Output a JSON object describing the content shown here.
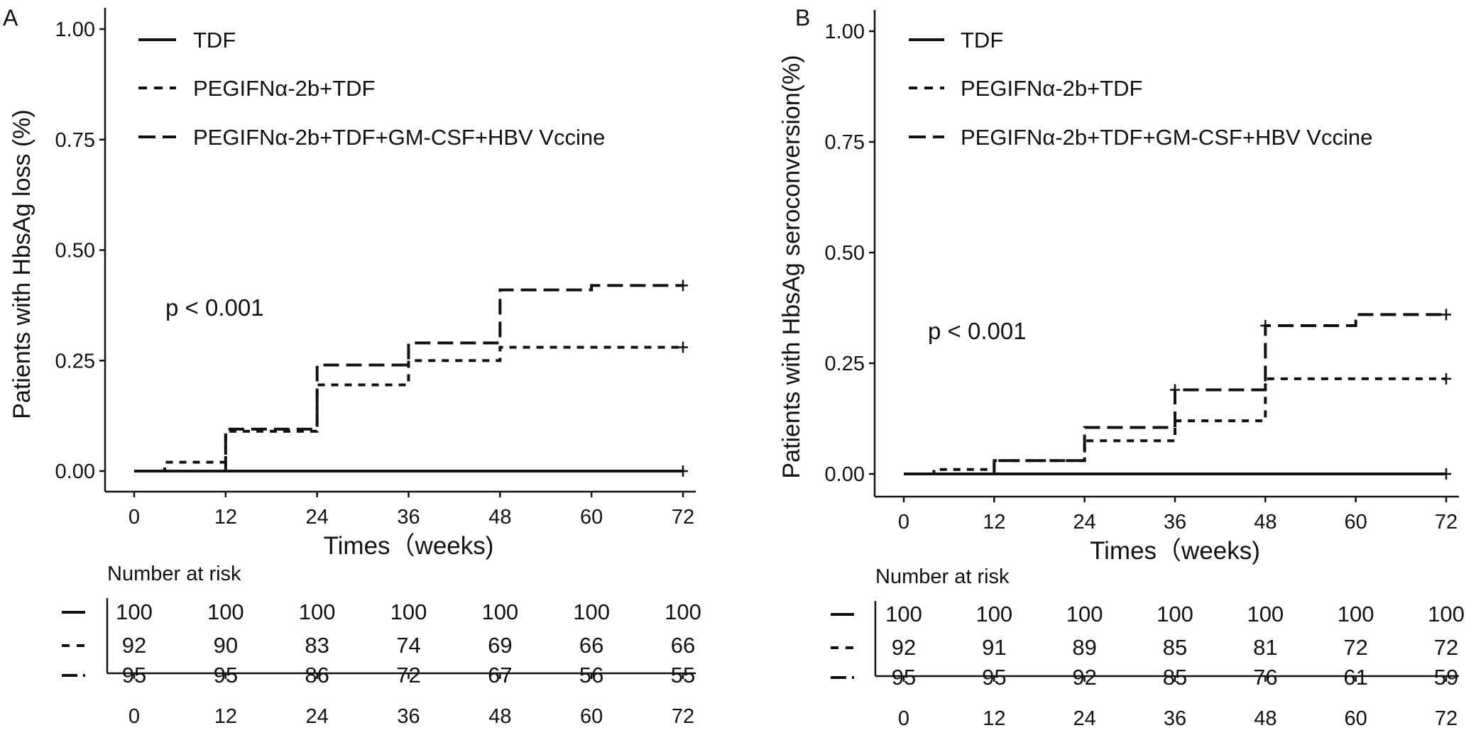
{
  "chart_data": [
    {
      "type": "line",
      "step": true,
      "panel_label": "A",
      "xlabel": "Times（weeks)",
      "ylabel": "Patients with HbsAg loss (%)",
      "xlim": [
        0,
        72
      ],
      "ylim": [
        0,
        1
      ],
      "x_ticks": [
        "0",
        "12",
        "24",
        "36",
        "48",
        "60",
        "72"
      ],
      "y_ticks": [
        "0.00",
        "0.25",
        "0.50",
        "0.75",
        "1.00"
      ],
      "annotation": "p < 0.001",
      "legend_position": "top-left",
      "series": [
        {
          "name": "TDF",
          "style": "solid",
          "x": [
            0,
            72
          ],
          "y": [
            0,
            0
          ],
          "censor_x": [
            72
          ]
        },
        {
          "name": "PEGIFNα-2b+TDF",
          "style": "dashed",
          "x": [
            0,
            4,
            12,
            24,
            36,
            48,
            72
          ],
          "y": [
            0,
            0.02,
            0.09,
            0.195,
            0.25,
            0.28,
            0.28
          ],
          "censor_x": [
            72
          ]
        },
        {
          "name": "PEGIFNα-2b+TDF+GM-CSF+HBV Vccine",
          "style": "longdash",
          "x": [
            0,
            12,
            24,
            36,
            48,
            60,
            72
          ],
          "y": [
            0,
            0.095,
            0.24,
            0.29,
            0.41,
            0.42,
            0.42
          ],
          "censor_x": [
            72
          ]
        }
      ],
      "risk_table": {
        "title": "Number at risk",
        "times": [
          "0",
          "12",
          "24",
          "36",
          "48",
          "60",
          "72"
        ],
        "rows": [
          [
            "100",
            "100",
            "100",
            "100",
            "100",
            "100",
            "100"
          ],
          [
            "92",
            "90",
            "83",
            "74",
            "69",
            "66",
            "66"
          ],
          [
            "95",
            "95",
            "86",
            "72",
            "67",
            "56",
            "55"
          ]
        ]
      }
    },
    {
      "type": "line",
      "step": true,
      "panel_label": "B",
      "xlabel": "Times（weeks)",
      "ylabel": "Patients with HbsAg  seroconversion(%)",
      "xlim": [
        0,
        72
      ],
      "ylim": [
        0,
        1
      ],
      "x_ticks": [
        "0",
        "12",
        "24",
        "36",
        "48",
        "60",
        "72"
      ],
      "y_ticks": [
        "0.00",
        "0.25",
        "0.50",
        "0.75",
        "1.00"
      ],
      "annotation": "p < 0.001",
      "legend_position": "top-left",
      "series": [
        {
          "name": "TDF",
          "style": "solid",
          "x": [
            0,
            72
          ],
          "y": [
            0,
            0
          ],
          "censor_x": [
            72
          ]
        },
        {
          "name": "PEGIFNα-2b+TDF",
          "style": "dashed",
          "x": [
            0,
            4,
            12,
            24,
            36,
            48,
            72
          ],
          "y": [
            0,
            0.01,
            0.03,
            0.075,
            0.12,
            0.215,
            0.215
          ],
          "censor_x": [
            72
          ]
        },
        {
          "name": "PEGIFNα-2b+TDF+GM-CSF+HBV Vccine",
          "style": "longdash",
          "x": [
            0,
            12,
            24,
            36,
            48,
            60,
            72
          ],
          "y": [
            0,
            0.03,
            0.105,
            0.19,
            0.335,
            0.36,
            0.36
          ],
          "censor_x": [
            36,
            48,
            72
          ]
        }
      ],
      "risk_table": {
        "title": "Number at risk",
        "times": [
          "0",
          "12",
          "24",
          "36",
          "48",
          "60",
          "72"
        ],
        "rows": [
          [
            "100",
            "100",
            "100",
            "100",
            "100",
            "100",
            "100"
          ],
          [
            "92",
            "91",
            "89",
            "85",
            "81",
            "72",
            "72"
          ],
          [
            "95",
            "95",
            "92",
            "85",
            "76",
            "61",
            "59"
          ]
        ]
      }
    }
  ]
}
